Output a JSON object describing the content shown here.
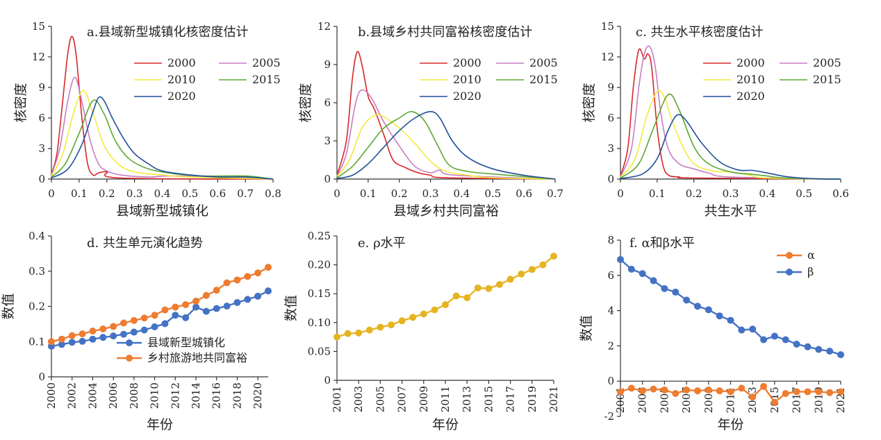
{
  "chart_data": [
    {
      "id": "a",
      "type": "line",
      "title": "a.县域新型城镇化核密度估计",
      "xlabel": "县域新型城镇化",
      "ylabel": "核密度",
      "xlim": [
        0,
        0.8
      ],
      "ylim": [
        0,
        15
      ],
      "xticks": [
        "0",
        "0.1",
        "0.2",
        "0.3",
        "0.4",
        "0.5",
        "0.6",
        "0.7",
        "0.8"
      ],
      "yticks": [
        "0",
        "3",
        "6",
        "9",
        "12",
        "15"
      ],
      "legend": "top-right",
      "series": [
        {
          "name": "2000",
          "color": "#d62728",
          "x": [
            0,
            0.02,
            0.04,
            0.06,
            0.075,
            0.09,
            0.11,
            0.13,
            0.15,
            0.17,
            0.2,
            0.25,
            0.8
          ],
          "y": [
            0.5,
            2.5,
            7.5,
            12.5,
            14,
            12,
            6,
            1.6,
            0.4,
            0.6,
            0.7,
            0.1,
            0
          ]
        },
        {
          "name": "2005",
          "color": "#c77cc4",
          "x": [
            0,
            0.03,
            0.06,
            0.085,
            0.11,
            0.14,
            0.17,
            0.2,
            0.25,
            0.35,
            0.45,
            0.8
          ],
          "y": [
            0.4,
            3,
            7.8,
            10,
            7.6,
            3.8,
            1.5,
            0.8,
            0.4,
            0.2,
            0.3,
            0
          ]
        },
        {
          "name": "2010",
          "color": "#f2ea3c",
          "x": [
            0,
            0.04,
            0.08,
            0.115,
            0.15,
            0.19,
            0.24,
            0.3,
            0.4,
            0.5,
            0.8
          ],
          "y": [
            0.3,
            2.4,
            6.5,
            8.7,
            6.5,
            3.3,
            1.5,
            0.7,
            0.4,
            0.2,
            0
          ]
        },
        {
          "name": "2015",
          "color": "#5aa832",
          "x": [
            0,
            0.05,
            0.1,
            0.15,
            0.19,
            0.23,
            0.28,
            0.35,
            0.45,
            0.55,
            0.7,
            0.8
          ],
          "y": [
            0.2,
            1.5,
            4.5,
            7.7,
            6.4,
            3.8,
            2,
            1,
            0.5,
            0.3,
            0.3,
            0
          ]
        },
        {
          "name": "2020",
          "color": "#1f4e99",
          "x": [
            0,
            0.06,
            0.11,
            0.15,
            0.17,
            0.19,
            0.22,
            0.26,
            0.3,
            0.35,
            0.4,
            0.5,
            0.6,
            0.7,
            0.8
          ],
          "y": [
            0.1,
            1,
            3.4,
            6.6,
            8,
            7.7,
            6,
            4,
            2.5,
            1.5,
            0.8,
            0.4,
            0.2,
            0.2,
            0
          ]
        }
      ]
    },
    {
      "id": "b",
      "type": "line",
      "title": "b.县域乡村共同富裕核密度估计",
      "xlabel": "县域乡村共同富裕",
      "ylabel": "核密度",
      "xlim": [
        0,
        0.7
      ],
      "ylim": [
        0,
        12
      ],
      "xticks": [
        "0",
        "0.1",
        "0.2",
        "0.3",
        "0.4",
        "0.5",
        "0.6",
        "0.7"
      ],
      "yticks": [
        "0",
        "3",
        "6",
        "9",
        "12"
      ],
      "legend": "top-right",
      "series": [
        {
          "name": "2000",
          "color": "#d62728",
          "x": [
            0,
            0.03,
            0.05,
            0.065,
            0.08,
            0.1,
            0.12,
            0.15,
            0.18,
            0.22,
            0.26,
            0.3,
            0.35,
            0.7
          ],
          "y": [
            0.3,
            3,
            8,
            10,
            9,
            6.5,
            5.5,
            3.5,
            1.5,
            0.9,
            0.5,
            0.3,
            0.1,
            0
          ]
        },
        {
          "name": "2005",
          "color": "#c77cc4",
          "x": [
            0,
            0.03,
            0.06,
            0.08,
            0.11,
            0.15,
            0.2,
            0.25,
            0.3,
            0.33,
            0.38,
            0.7
          ],
          "y": [
            0.2,
            2,
            6,
            7,
            6.4,
            4.5,
            2.6,
            1,
            0.5,
            0.7,
            0.3,
            0
          ]
        },
        {
          "name": "2010",
          "color": "#f2ea3c",
          "x": [
            0,
            0.04,
            0.08,
            0.12,
            0.15,
            0.2,
            0.25,
            0.3,
            0.35,
            0.42,
            0.5,
            0.7
          ],
          "y": [
            0.2,
            1.5,
            4,
            5,
            4.9,
            4,
            2.8,
            1.4,
            0.6,
            0.3,
            0.1,
            0
          ]
        },
        {
          "name": "2015",
          "color": "#5aa832",
          "x": [
            0,
            0.05,
            0.1,
            0.15,
            0.2,
            0.24,
            0.28,
            0.32,
            0.36,
            0.42,
            0.5,
            0.6,
            0.7
          ],
          "y": [
            0.1,
            1,
            2.5,
            4,
            4.8,
            5.3,
            4.6,
            2.8,
            1.1,
            0.6,
            0.4,
            0.2,
            0
          ]
        },
        {
          "name": "2020",
          "color": "#1f4e99",
          "x": [
            0,
            0.05,
            0.1,
            0.15,
            0.2,
            0.25,
            0.3,
            0.33,
            0.37,
            0.42,
            0.5,
            0.6,
            0.7
          ],
          "y": [
            0.05,
            0.3,
            1.2,
            2.5,
            3.8,
            4.8,
            5.3,
            4.8,
            3,
            1.7,
            0.8,
            0.3,
            0
          ]
        }
      ]
    },
    {
      "id": "c",
      "type": "line",
      "title": "c. 共生水平核密度估计",
      "xlabel": "共生水平",
      "ylabel": "核密度",
      "xlim": [
        0,
        0.6
      ],
      "ylim": [
        0,
        15
      ],
      "xticks": [
        "0",
        "0.1",
        "0.2",
        "0.3",
        "0.4",
        "0.5",
        "0.6"
      ],
      "yticks": [
        "0",
        "3",
        "6",
        "9",
        "12",
        "15"
      ],
      "legend": "top-right",
      "series": [
        {
          "name": "2000",
          "color": "#d62728",
          "x": [
            0,
            0.02,
            0.035,
            0.05,
            0.065,
            0.075,
            0.085,
            0.1,
            0.115,
            0.13,
            0.16,
            0.2,
            0.6
          ],
          "y": [
            0.3,
            3,
            9,
            12.7,
            11.8,
            12.3,
            11,
            5,
            1.5,
            0.4,
            0.2,
            0.1,
            0
          ]
        },
        {
          "name": "2005",
          "color": "#c77cc4",
          "x": [
            0,
            0.03,
            0.05,
            0.065,
            0.08,
            0.095,
            0.11,
            0.13,
            0.16,
            0.2,
            0.24,
            0.3,
            0.6
          ],
          "y": [
            0.2,
            3,
            9,
            12.3,
            13,
            11,
            6.5,
            3,
            1.5,
            1,
            0.6,
            0.2,
            0
          ]
        },
        {
          "name": "2010",
          "color": "#f2ea3c",
          "x": [
            0,
            0.04,
            0.07,
            0.1,
            0.12,
            0.14,
            0.17,
            0.2,
            0.25,
            0.3,
            0.35,
            0.4,
            0.6
          ],
          "y": [
            0.2,
            2,
            6,
            8.6,
            8,
            5.8,
            3.2,
            1.5,
            0.8,
            0.7,
            0.4,
            0.1,
            0
          ]
        },
        {
          "name": "2015",
          "color": "#5aa832",
          "x": [
            0,
            0.05,
            0.09,
            0.13,
            0.16,
            0.2,
            0.24,
            0.3,
            0.35,
            0.4,
            0.45,
            0.6
          ],
          "y": [
            0.1,
            1.5,
            5,
            8.3,
            6.8,
            3.2,
            1.5,
            0.7,
            0.5,
            0.3,
            0.1,
            0
          ]
        },
        {
          "name": "2020",
          "color": "#1f4e99",
          "x": [
            0,
            0.06,
            0.1,
            0.13,
            0.155,
            0.18,
            0.22,
            0.27,
            0.32,
            0.36,
            0.4,
            0.46,
            0.55,
            0.6
          ],
          "y": [
            0.05,
            0.5,
            2,
            4.8,
            6.3,
            5.7,
            3.6,
            1.7,
            0.9,
            0.85,
            0.6,
            0.2,
            0,
            0
          ]
        }
      ]
    },
    {
      "id": "d",
      "type": "line",
      "title": "d. 共生单元演化趋势",
      "xlabel": "年份",
      "ylabel": "数值",
      "xlim": [
        2000,
        2021
      ],
      "ylim": [
        0,
        0.4
      ],
      "xticks": [
        "2000",
        "2002",
        "2004",
        "2006",
        "2008",
        "2010",
        "2012",
        "2014",
        "2016",
        "2018",
        "2020"
      ],
      "yticks": [
        "0",
        "0.1",
        "0.2",
        "0.3",
        "0.4"
      ],
      "legend": "bottom-right",
      "series": [
        {
          "name": "县域新型城镇化",
          "color": "#4472c4",
          "x": [
            2000,
            2001,
            2002,
            2003,
            2004,
            2005,
            2006,
            2007,
            2008,
            2009,
            2010,
            2011,
            2012,
            2013,
            2014,
            2015,
            2016,
            2017,
            2018,
            2019,
            2020,
            2021
          ],
          "y": [
            0.087,
            0.092,
            0.098,
            0.101,
            0.107,
            0.112,
            0.116,
            0.121,
            0.127,
            0.133,
            0.142,
            0.151,
            0.175,
            0.168,
            0.198,
            0.186,
            0.194,
            0.201,
            0.211,
            0.22,
            0.229,
            0.244
          ]
        },
        {
          "name": "乡村旅游地共同富裕",
          "color": "#ed7d31",
          "x": [
            2000,
            2001,
            2002,
            2003,
            2004,
            2005,
            2006,
            2007,
            2008,
            2009,
            2010,
            2011,
            2012,
            2013,
            2014,
            2015,
            2016,
            2017,
            2018,
            2019,
            2020,
            2021
          ],
          "y": [
            0.1,
            0.107,
            0.117,
            0.122,
            0.13,
            0.136,
            0.143,
            0.153,
            0.16,
            0.167,
            0.175,
            0.19,
            0.198,
            0.205,
            0.215,
            0.231,
            0.246,
            0.267,
            0.275,
            0.285,
            0.295,
            0.311
          ]
        }
      ]
    },
    {
      "id": "e",
      "type": "line",
      "title": "e. ρ水平",
      "xlabel": "年份",
      "ylabel": "数值",
      "xlim": [
        2001,
        2021
      ],
      "ylim": [
        0,
        0.25
      ],
      "xticks": [
        "2001",
        "2003",
        "2005",
        "2007",
        "2009",
        "2011",
        "2013",
        "2015",
        "2017",
        "2019",
        "2021"
      ],
      "yticks": [
        "0",
        "0.05",
        "0.10",
        "0.15",
        "0.20",
        "0.25"
      ],
      "series": [
        {
          "color": "#e6b422",
          "x": [
            2001,
            2002,
            2003,
            2004,
            2005,
            2006,
            2007,
            2008,
            2009,
            2010,
            2011,
            2012,
            2013,
            2014,
            2015,
            2016,
            2017,
            2018,
            2019,
            2020,
            2021
          ],
          "y": [
            0.075,
            0.081,
            0.082,
            0.087,
            0.092,
            0.096,
            0.103,
            0.109,
            0.115,
            0.122,
            0.131,
            0.146,
            0.143,
            0.16,
            0.159,
            0.166,
            0.175,
            0.184,
            0.192,
            0.2,
            0.215
          ]
        }
      ]
    },
    {
      "id": "f",
      "type": "line",
      "title": "f. α和β水平",
      "xlabel": "年份",
      "ylabel": "数值",
      "xlim": [
        2001,
        2021
      ],
      "ylim": [
        -2,
        8
      ],
      "xticks": [
        "2001",
        "2003",
        "2005",
        "2007",
        "2009",
        "2011",
        "2013",
        "2015",
        "2017",
        "2019",
        "2021"
      ],
      "yticks": [
        "-2",
        "0",
        "2",
        "4",
        "6",
        "8"
      ],
      "legend": "top-right",
      "series": [
        {
          "name": "α",
          "color": "#ed7d31",
          "x": [
            2001,
            2002,
            2003,
            2004,
            2005,
            2006,
            2007,
            2008,
            2009,
            2010,
            2011,
            2012,
            2013,
            2014,
            2015,
            2016,
            2017,
            2018,
            2019,
            2020,
            2021
          ],
          "y": [
            -0.6,
            -0.4,
            -0.55,
            -0.45,
            -0.5,
            -0.7,
            -0.5,
            -0.55,
            -0.5,
            -0.55,
            -0.6,
            -0.4,
            -0.9,
            -0.3,
            -1.2,
            -0.7,
            -0.6,
            -0.6,
            -0.6,
            -0.65,
            -0.6
          ]
        },
        {
          "name": "β",
          "color": "#4472c4",
          "x": [
            2001,
            2002,
            2003,
            2004,
            2005,
            2006,
            2007,
            2008,
            2009,
            2010,
            2011,
            2012,
            2013,
            2014,
            2015,
            2016,
            2017,
            2018,
            2019,
            2020,
            2021
          ],
          "y": [
            6.9,
            6.35,
            6.1,
            5.7,
            5.25,
            5.05,
            4.6,
            4.25,
            4.05,
            3.7,
            3.45,
            2.9,
            2.95,
            2.35,
            2.55,
            2.35,
            2.1,
            1.95,
            1.8,
            1.7,
            1.5
          ]
        }
      ]
    }
  ]
}
